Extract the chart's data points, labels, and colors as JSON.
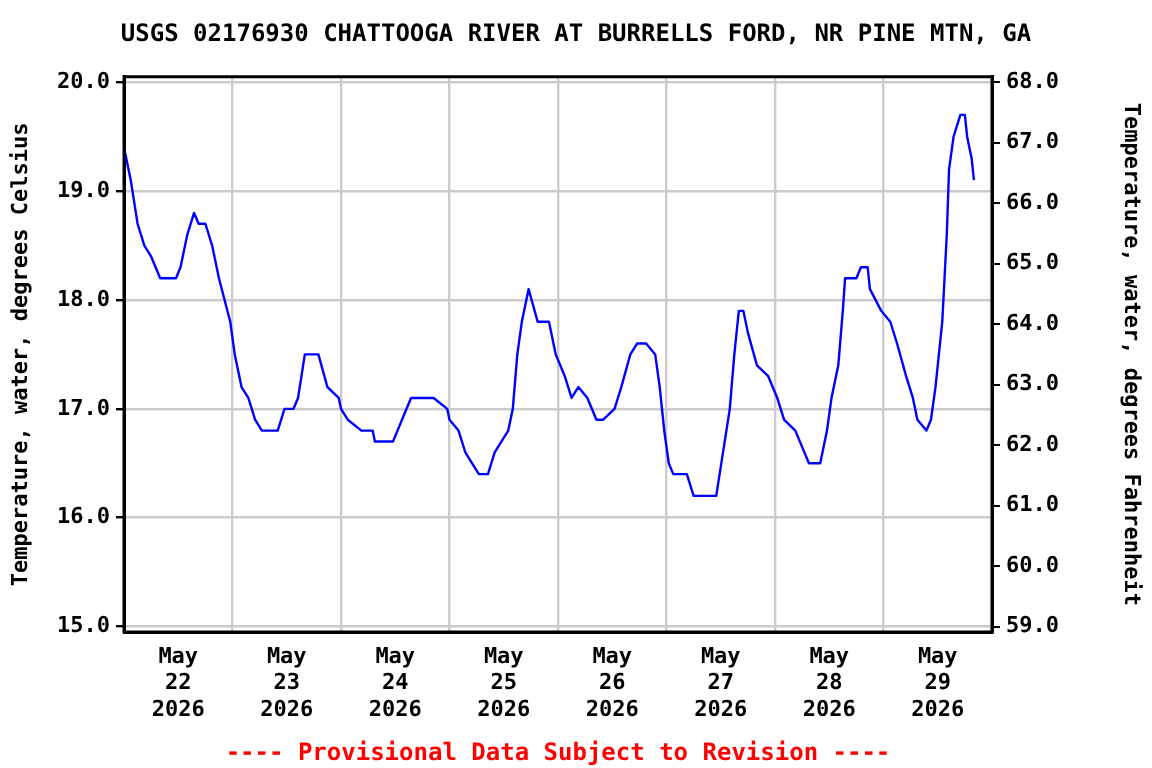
{
  "chart_data": {
    "type": "line",
    "title": "USGS 02176930 CHATTOOGA RIVER AT BURRELLS FORD, NR PINE MTN, GA",
    "ylabel": "Temperature, water, degrees Celsius",
    "y2label": "Temperature, water, degrees Fahrenheit",
    "annotations": [
      "---- Provisional Data Subject to Revision ----"
    ],
    "x": [
      "2026-05-22T00:00",
      "2026-05-22T01:30",
      "2026-05-22T03:00",
      "2026-05-22T04:30",
      "2026-05-22T06:00",
      "2026-05-22T08:00",
      "2026-05-22T11:30",
      "2026-05-22T12:30",
      "2026-05-22T14:00",
      "2026-05-22T15:30",
      "2026-05-22T16:30",
      "2026-05-22T18:00",
      "2026-05-22T19:30",
      "2026-05-22T21:00",
      "2026-05-22T23:30",
      "2026-05-23T00:30",
      "2026-05-23T02:00",
      "2026-05-23T03:30",
      "2026-05-23T05:00",
      "2026-05-23T06:30",
      "2026-05-23T10:00",
      "2026-05-23T11:30",
      "2026-05-23T13:30",
      "2026-05-23T14:30",
      "2026-05-23T16:00",
      "2026-05-23T19:00",
      "2026-05-23T21:00",
      "2026-05-23T23:30",
      "2026-05-24T00:00",
      "2026-05-24T01:30",
      "2026-05-24T04:30",
      "2026-05-24T07:00",
      "2026-05-24T07:30",
      "2026-05-24T11:30",
      "2026-05-24T12:30",
      "2026-05-24T14:30",
      "2026-05-24T15:30",
      "2026-05-24T20:30",
      "2026-05-24T23:30",
      "2026-05-25T00:00",
      "2026-05-25T02:00",
      "2026-05-25T03:30",
      "2026-05-25T05:00",
      "2026-05-25T06:30",
      "2026-05-25T08:30",
      "2026-05-25T10:00",
      "2026-05-25T11:30",
      "2026-05-25T13:00",
      "2026-05-25T14:00",
      "2026-05-25T15:00",
      "2026-05-25T16:00",
      "2026-05-25T17:30",
      "2026-05-25T19:30",
      "2026-05-25T22:00",
      "2026-05-25T23:30",
      "2026-05-26T01:30",
      "2026-05-26T03:00",
      "2026-05-26T04:30",
      "2026-05-26T06:30",
      "2026-05-26T08:30",
      "2026-05-26T10:00",
      "2026-05-26T12:30",
      "2026-05-26T14:00",
      "2026-05-26T16:00",
      "2026-05-26T17:30",
      "2026-05-26T19:30",
      "2026-05-26T21:30",
      "2026-05-26T22:30",
      "2026-05-26T23:30",
      "2026-05-27T00:30",
      "2026-05-27T01:30",
      "2026-05-27T04:30",
      "2026-05-27T06:00",
      "2026-05-27T11:00",
      "2026-05-27T12:30",
      "2026-05-27T14:00",
      "2026-05-27T15:00",
      "2026-05-27T16:00",
      "2026-05-27T17:00",
      "2026-05-27T18:00",
      "2026-05-27T20:00",
      "2026-05-27T22:30",
      "2026-05-28T00:30",
      "2026-05-28T02:00",
      "2026-05-28T04:30",
      "2026-05-28T06:30",
      "2026-05-28T07:30",
      "2026-05-28T10:00",
      "2026-05-28T11:30",
      "2026-05-28T12:30",
      "2026-05-28T14:00",
      "2026-05-28T15:00",
      "2026-05-28T15:30",
      "2026-05-28T18:00",
      "2026-05-28T19:00",
      "2026-05-28T20:30",
      "2026-05-28T21:00",
      "2026-05-28T23:30",
      "2026-05-29T01:30",
      "2026-05-29T03:00",
      "2026-05-29T05:00",
      "2026-05-29T06:30",
      "2026-05-29T07:30",
      "2026-05-29T09:30",
      "2026-05-29T10:30",
      "2026-05-29T11:30",
      "2026-05-29T13:00",
      "2026-05-29T14:00",
      "2026-05-29T14:30",
      "2026-05-29T15:30",
      "2026-05-29T17:00",
      "2026-05-29T18:00",
      "2026-05-29T18:30",
      "2026-05-29T19:30",
      "2026-05-29T20:00"
    ],
    "series": [
      {
        "color": "#0000ff",
        "values": [
          19.4,
          19.1,
          18.7,
          18.5,
          18.4,
          18.2,
          18.2,
          18.3,
          18.6,
          18.8,
          18.7,
          18.7,
          18.5,
          18.2,
          17.8,
          17.5,
          17.2,
          17.1,
          16.9,
          16.8,
          16.8,
          17.0,
          17.0,
          17.1,
          17.5,
          17.5,
          17.2,
          17.1,
          17.0,
          16.9,
          16.8,
          16.8,
          16.7,
          16.7,
          16.8,
          17.0,
          17.1,
          17.1,
          17.0,
          16.9,
          16.8,
          16.6,
          16.5,
          16.4,
          16.4,
          16.6,
          16.7,
          16.8,
          17.0,
          17.5,
          17.8,
          18.1,
          17.8,
          17.8,
          17.5,
          17.3,
          17.1,
          17.2,
          17.1,
          16.9,
          16.9,
          17.0,
          17.2,
          17.5,
          17.6,
          17.6,
          17.5,
          17.2,
          16.8,
          16.5,
          16.4,
          16.4,
          16.2,
          16.2,
          16.6,
          17.0,
          17.5,
          17.9,
          17.9,
          17.7,
          17.4,
          17.3,
          17.1,
          16.9,
          16.8,
          16.6,
          16.5,
          16.5,
          16.8,
          17.1,
          17.4,
          17.9,
          18.2,
          18.2,
          18.3,
          18.3,
          18.1,
          17.9,
          17.8,
          17.6,
          17.3,
          17.1,
          16.9,
          16.8,
          16.9,
          17.2,
          17.8,
          18.6,
          19.2,
          19.5,
          19.7,
          19.7,
          19.5,
          19.3,
          19.1
        ]
      }
    ],
    "xlim": [
      "2026-05-22T00:00",
      "2026-05-30T00:00"
    ],
    "xticks": [
      {
        "value": "2026-05-22T12:00",
        "label": "May\n22\n2026"
      },
      {
        "value": "2026-05-23T00:00",
        "label": null
      },
      {
        "value": "2026-05-23T12:00",
        "label": "May\n23\n2026"
      },
      {
        "value": "2026-05-24T00:00",
        "label": null
      },
      {
        "value": "2026-05-24T12:00",
        "label": "May\n24\n2026"
      },
      {
        "value": "2026-05-25T00:00",
        "label": null
      },
      {
        "value": "2026-05-25T12:00",
        "label": "May\n25\n2026"
      },
      {
        "value": "2026-05-26T00:00",
        "label": null
      },
      {
        "value": "2026-05-26T12:00",
        "label": "May\n26\n2026"
      },
      {
        "value": "2026-05-27T00:00",
        "label": null
      },
      {
        "value": "2026-05-27T12:00",
        "label": "May\n27\n2026"
      },
      {
        "value": "2026-05-28T00:00",
        "label": null
      },
      {
        "value": "2026-05-28T12:00",
        "label": "May\n28\n2026"
      },
      {
        "value": "2026-05-29T00:00",
        "label": null
      },
      {
        "value": "2026-05-29T12:00",
        "label": "May\n29\n2026"
      }
    ],
    "ylim": [
      14.95,
      20.05
    ],
    "yticks": [
      {
        "value": 15,
        "label": "15.0"
      },
      {
        "value": 16,
        "label": "16.0"
      },
      {
        "value": 17,
        "label": "17.0"
      },
      {
        "value": 18,
        "label": "18.0"
      },
      {
        "value": 19,
        "label": "19.0"
      },
      {
        "value": 20,
        "label": "20.0"
      }
    ],
    "y2lim": [
      58.91,
      68.09
    ],
    "y2ticks": [
      {
        "value": 59,
        "label": "59.0"
      },
      {
        "value": 60,
        "label": "60.0"
      },
      {
        "value": 61,
        "label": "61.0"
      },
      {
        "value": 62,
        "label": "62.0"
      },
      {
        "value": 63,
        "label": "63.0"
      },
      {
        "value": 64,
        "label": "64.0"
      },
      {
        "value": 65,
        "label": "65.0"
      },
      {
        "value": 66,
        "label": "66.0"
      },
      {
        "value": 67,
        "label": "67.0"
      },
      {
        "value": 68,
        "label": "68.0"
      }
    ],
    "grid": true,
    "legend": false,
    "marker": "none"
  }
}
